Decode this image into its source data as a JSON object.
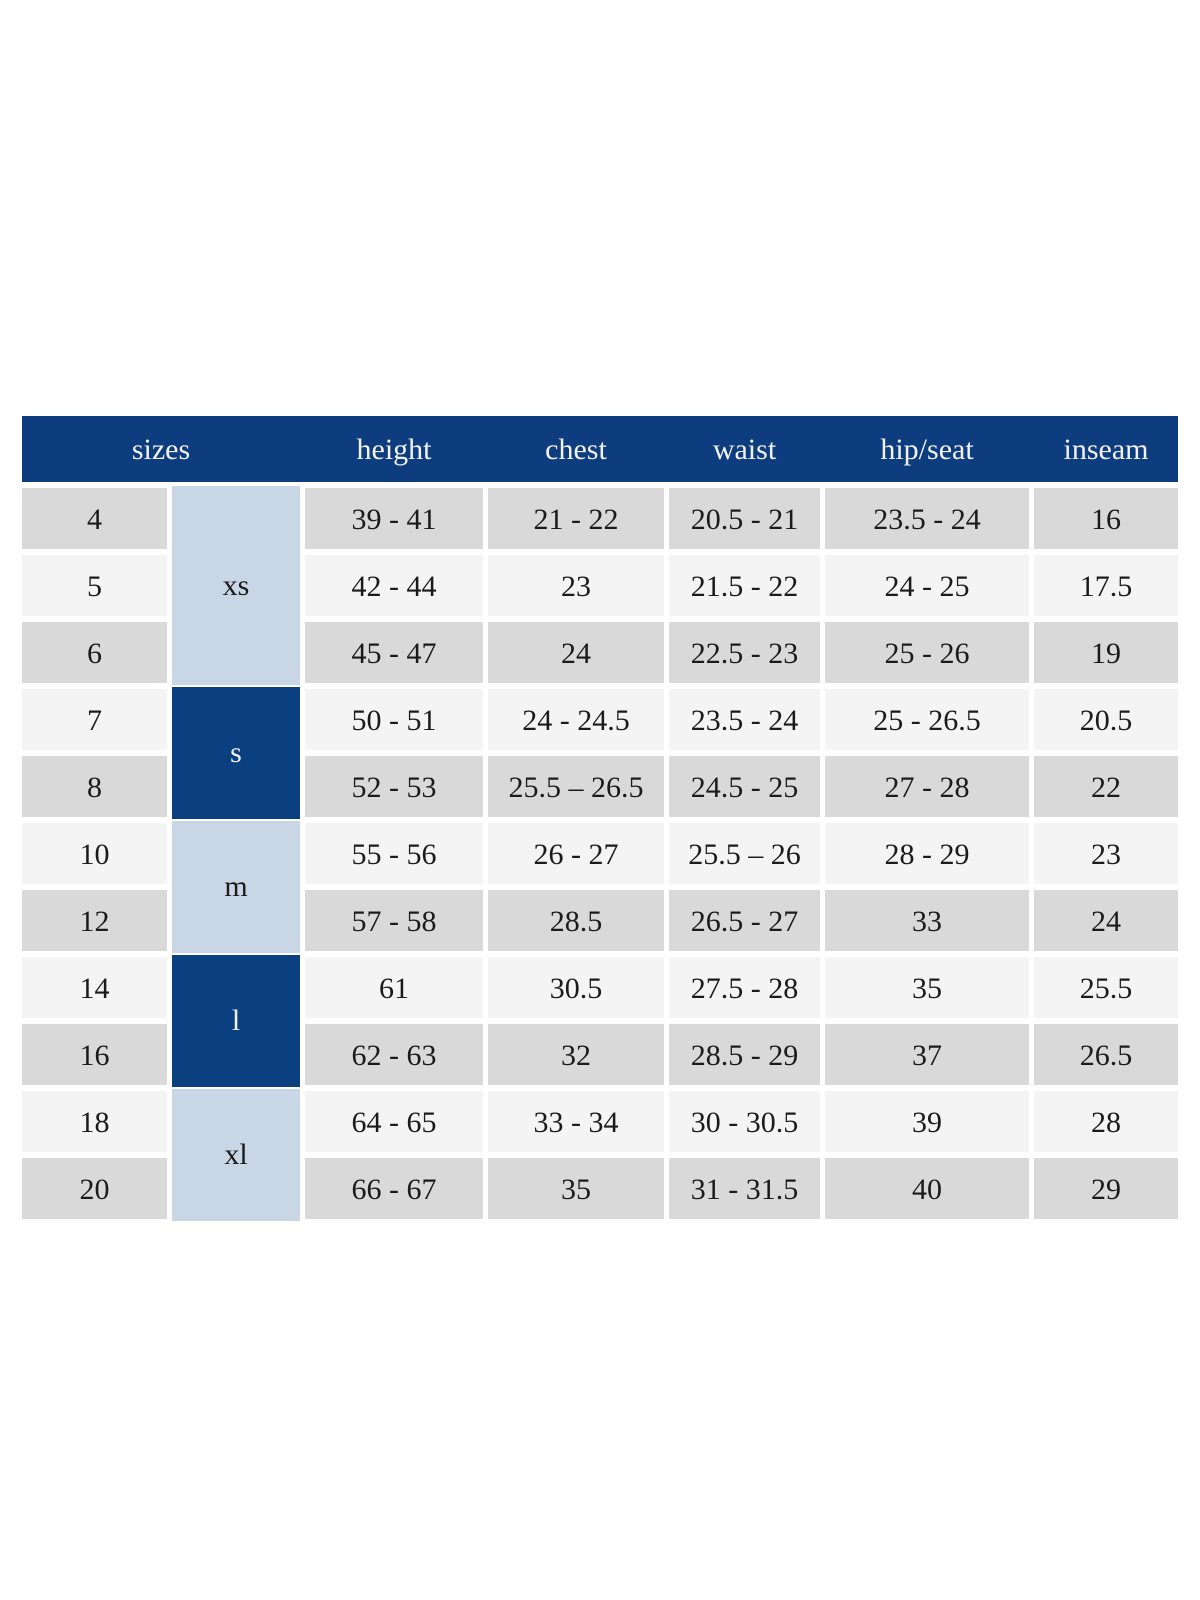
{
  "chart_data": {
    "type": "table",
    "columns": [
      "sizes",
      "height",
      "chest",
      "waist",
      "hip/seat",
      "inseam"
    ],
    "size_groups": [
      {
        "label": "xs",
        "sizes": [
          "4",
          "5",
          "6"
        ],
        "shade": "light"
      },
      {
        "label": "s",
        "sizes": [
          "7",
          "8"
        ],
        "shade": "dark"
      },
      {
        "label": "m",
        "sizes": [
          "10",
          "12"
        ],
        "shade": "light"
      },
      {
        "label": "l",
        "sizes": [
          "14",
          "16"
        ],
        "shade": "dark"
      },
      {
        "label": "xl",
        "sizes": [
          "18",
          "20"
        ],
        "shade": "light"
      }
    ],
    "rows": [
      {
        "size": "4",
        "height": "39 - 41",
        "chest": "21 - 22",
        "waist": "20.5 - 21",
        "hip_seat": "23.5 - 24",
        "inseam": "16"
      },
      {
        "size": "5",
        "height": "42 - 44",
        "chest": "23",
        "waist": "21.5 - 22",
        "hip_seat": "24 - 25",
        "inseam": "17.5"
      },
      {
        "size": "6",
        "height": "45 - 47",
        "chest": "24",
        "waist": "22.5 - 23",
        "hip_seat": "25 - 26",
        "inseam": "19"
      },
      {
        "size": "7",
        "height": "50 - 51",
        "chest": "24 - 24.5",
        "waist": "23.5 - 24",
        "hip_seat": "25 - 26.5",
        "inseam": "20.5"
      },
      {
        "size": "8",
        "height": "52 - 53",
        "chest": "25.5 – 26.5",
        "waist": "24.5 - 25",
        "hip_seat": "27 - 28",
        "inseam": "22"
      },
      {
        "size": "10",
        "height": "55 - 56",
        "chest": "26 - 27",
        "waist": "25.5 – 26",
        "hip_seat": "28 - 29",
        "inseam": "23"
      },
      {
        "size": "12",
        "height": "57 - 58",
        "chest": "28.5",
        "waist": "26.5 - 27",
        "hip_seat": "33",
        "inseam": "24"
      },
      {
        "size": "14",
        "height": "61",
        "chest": "30.5",
        "waist": "27.5 - 28",
        "hip_seat": "35",
        "inseam": "25.5"
      },
      {
        "size": "16",
        "height": "62 - 63",
        "chest": "32",
        "waist": "28.5 - 29",
        "hip_seat": "37",
        "inseam": "26.5"
      },
      {
        "size": "18",
        "height": "64 - 65",
        "chest": "33 - 34",
        "waist": "30 - 30.5",
        "hip_seat": "39",
        "inseam": "28"
      },
      {
        "size": "20",
        "height": "66 - 67",
        "chest": "35",
        "waist": "31 - 31.5",
        "hip_seat": "40",
        "inseam": "29"
      }
    ]
  },
  "colors": {
    "page_bg": "#ffffff",
    "header_bg": "#0d3d7e",
    "header_text": "#f2f2f2",
    "group_dark": "#0a4080",
    "group_light": "#c9d6e5",
    "row_dark": "#d9d9d9",
    "row_light": "#f4f4f4",
    "body_text": "#1b1b1b"
  }
}
